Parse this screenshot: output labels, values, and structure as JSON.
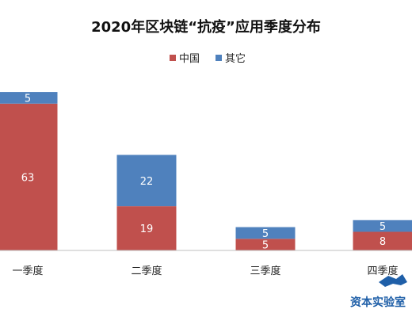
{
  "chart_data": {
    "type": "bar",
    "stacked": true,
    "title": "2020年区块链“抗疫”应用季度分布",
    "categories": [
      "一季度",
      "二季度",
      "三季度",
      "四季度"
    ],
    "series": [
      {
        "name": "中国",
        "color": "#c0504d",
        "values": [
          63,
          19,
          5,
          8
        ]
      },
      {
        "name": "其它",
        "color": "#4f81bd",
        "values": [
          5,
          22,
          5,
          5
        ]
      }
    ],
    "ylim": [
      0,
      68
    ],
    "grid": false,
    "legend_position": "top-center"
  },
  "watermark": {
    "text": "资本实验室"
  }
}
